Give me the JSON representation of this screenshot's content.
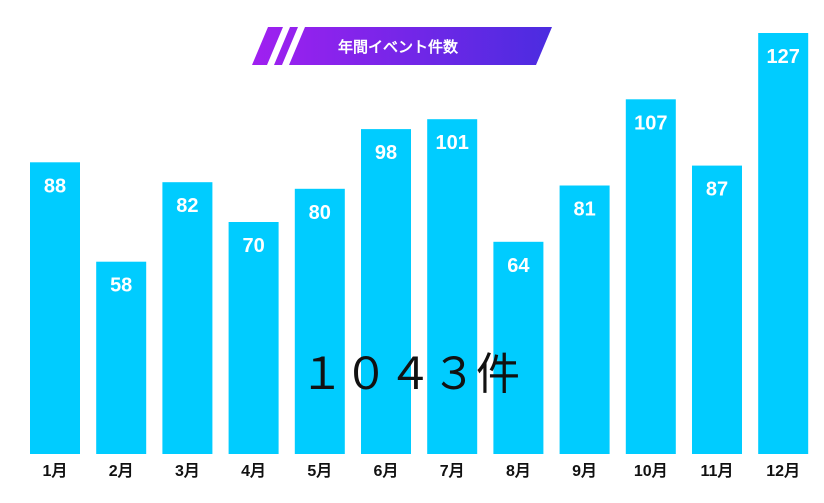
{
  "chart_data": {
    "type": "bar",
    "title": "年間イベント件数",
    "categories": [
      "1月",
      "2月",
      "3月",
      "4月",
      "5月",
      "6月",
      "7月",
      "8月",
      "9月",
      "10月",
      "11月",
      "12月"
    ],
    "values": [
      88,
      58,
      82,
      70,
      80,
      98,
      101,
      64,
      81,
      107,
      87,
      127
    ],
    "annotation": "１０４３件",
    "ylim": [
      0,
      127
    ],
    "grid": false,
    "bar_color": "#00ccff",
    "title_gradient": [
      "#a020f0",
      "#4b2ce0"
    ]
  }
}
